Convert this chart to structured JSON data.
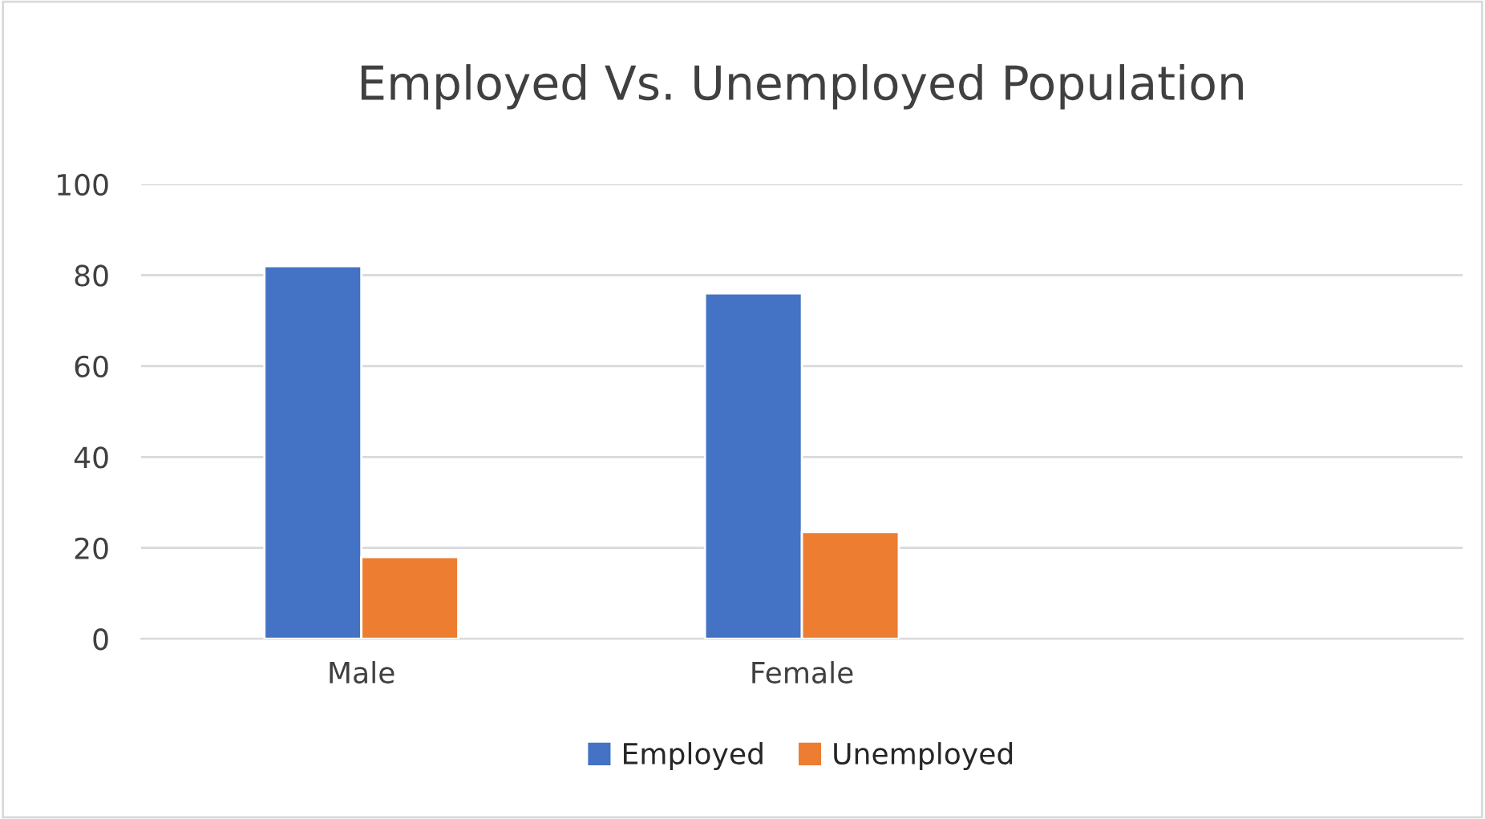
{
  "chart_data": {
    "type": "bar",
    "title": "Employed Vs. Unemployed Population",
    "categories": [
      "Male",
      "Female",
      null
    ],
    "series": [
      {
        "name": "Employed",
        "color": "#4472c4",
        "values": [
          82,
          76,
          null
        ]
      },
      {
        "name": "Unemployed",
        "color": "#ed7d31",
        "values": [
          18,
          23.5,
          null
        ]
      }
    ],
    "ylim": [
      0,
      100
    ],
    "yticks": [
      0,
      20,
      40,
      60,
      80,
      100
    ],
    "grid": "y",
    "legend": "bottom"
  }
}
